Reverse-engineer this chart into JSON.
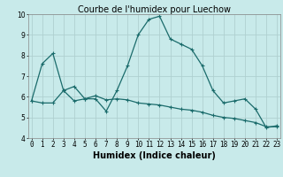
{
  "title": "Courbe de l'humidex pour Luechow",
  "xlabel": "Humidex (Indice chaleur)",
  "background_color": "#c8eaea",
  "grid_color": "#afd0d0",
  "line_color": "#1a6b6b",
  "x_line1": [
    0,
    1,
    2,
    3,
    4,
    5,
    6,
    7,
    8,
    9,
    10,
    11,
    12,
    13,
    14,
    15,
    16,
    17,
    18,
    19,
    20,
    21,
    22,
    23
  ],
  "y_line1": [
    5.8,
    7.6,
    8.1,
    6.3,
    6.5,
    5.9,
    5.9,
    5.3,
    6.3,
    7.5,
    9.0,
    9.75,
    9.9,
    8.8,
    8.55,
    8.3,
    7.5,
    6.3,
    5.7,
    5.8,
    5.9,
    5.4,
    4.5,
    4.6
  ],
  "x_line2": [
    0,
    1,
    2,
    3,
    4,
    5,
    6,
    7,
    8,
    9,
    10,
    11,
    12,
    13,
    14,
    15,
    16,
    17,
    18,
    19,
    20,
    21,
    22,
    23
  ],
  "y_line2": [
    5.8,
    5.7,
    5.7,
    6.3,
    5.8,
    5.9,
    6.05,
    5.85,
    5.9,
    5.85,
    5.7,
    5.65,
    5.6,
    5.5,
    5.4,
    5.35,
    5.25,
    5.1,
    5.0,
    4.95,
    4.85,
    4.75,
    4.55,
    4.55
  ],
  "ylim": [
    4,
    10
  ],
  "xlim": [
    -0.3,
    23.3
  ],
  "yticks": [
    4,
    5,
    6,
    7,
    8,
    9,
    10
  ],
  "xticks": [
    0,
    1,
    2,
    3,
    4,
    5,
    6,
    7,
    8,
    9,
    10,
    11,
    12,
    13,
    14,
    15,
    16,
    17,
    18,
    19,
    20,
    21,
    22,
    23
  ],
  "xtick_labels": [
    "0",
    "1",
    "2",
    "3",
    "4",
    "5",
    "6",
    "7",
    "8",
    "9",
    "10",
    "11",
    "12",
    "13",
    "14",
    "15",
    "16",
    "17",
    "18",
    "19",
    "20",
    "21",
    "22",
    "23"
  ],
  "title_fontsize": 7,
  "xlabel_fontsize": 7,
  "tick_fontsize": 5.5,
  "marker": "+"
}
